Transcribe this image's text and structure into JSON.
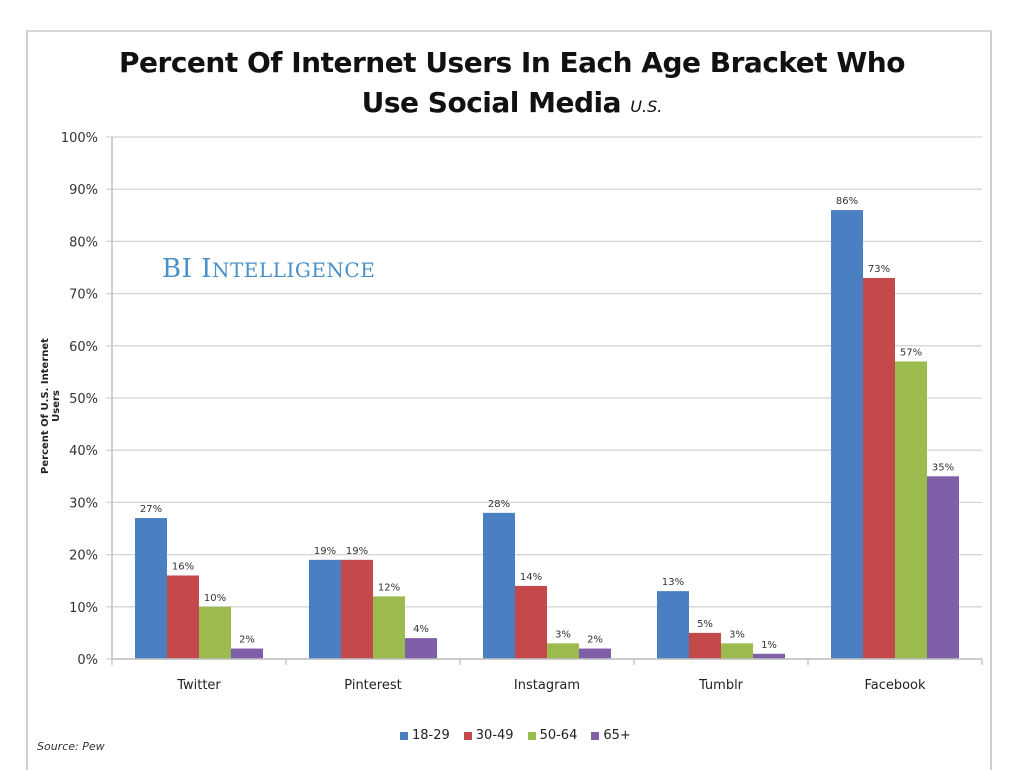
{
  "title_line1": "Percent Of Internet Users In Each Age Bracket Who",
  "title_line2": "Use Social Media",
  "title_suffix": "U.S.",
  "logo": {
    "first": "BI",
    "second_initial": "I",
    "second_rest": "NTELLIGENCE",
    "full": "BI Intelligence"
  },
  "source": "Source: Pew",
  "chart_data": {
    "type": "bar",
    "title": "Percent Of Internet Users In Each Age Bracket Who Use Social Media U.S.",
    "xlabel": "",
    "ylabel": "Percent Of U.S. Internet Users",
    "ylim": [
      0,
      100
    ],
    "yticks": [
      "0%",
      "10%",
      "20%",
      "30%",
      "40%",
      "50%",
      "60%",
      "70%",
      "80%",
      "90%",
      "100%"
    ],
    "ytick_values": [
      0,
      10,
      20,
      30,
      40,
      50,
      60,
      70,
      80,
      90,
      100
    ],
    "grid": true,
    "legend_position": "bottom",
    "categories": [
      "Twitter",
      "Pinterest",
      "Instagram",
      "Tumblr",
      "Facebook"
    ],
    "series": [
      {
        "name": "18-29",
        "color": "#4a7fc1",
        "values": [
          27,
          19,
          28,
          13,
          86
        ],
        "labels": [
          "27%",
          "19%",
          "28%",
          "13%",
          "86%"
        ]
      },
      {
        "name": "30-49",
        "color": "#c4494a",
        "values": [
          16,
          19,
          14,
          5,
          73
        ],
        "labels": [
          "16%",
          "19%",
          "14%",
          "5%",
          "73%"
        ]
      },
      {
        "name": "50-64",
        "color": "#9bbb4f",
        "values": [
          10,
          12,
          3,
          3,
          57
        ],
        "labels": [
          "10%",
          "12%",
          "3%",
          "3%",
          "57%"
        ]
      },
      {
        "name": "65+",
        "color": "#7f5fa8",
        "values": [
          2,
          4,
          2,
          1,
          35
        ],
        "labels": [
          "2%",
          "4%",
          "2%",
          "1%",
          "35%"
        ]
      }
    ]
  }
}
